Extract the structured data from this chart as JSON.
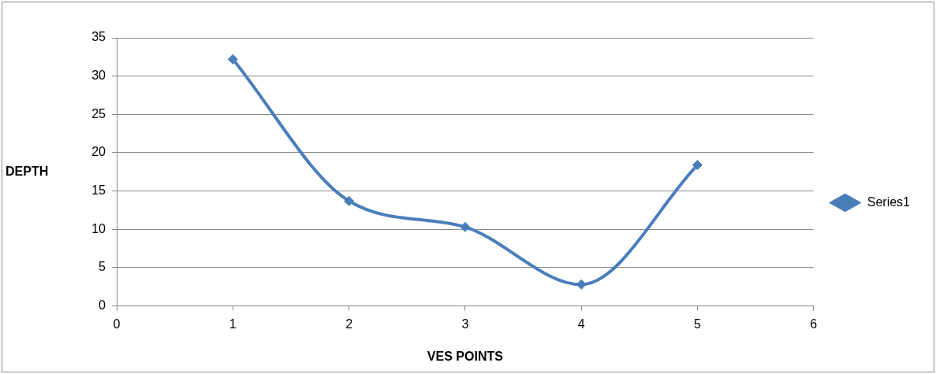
{
  "chart_data": {
    "type": "line",
    "xlabel": "VES POINTS",
    "ylabel": "DEPTH",
    "x": [
      1,
      2,
      3,
      4,
      5
    ],
    "series": [
      {
        "name": "Series1",
        "color": "#4a7ebb",
        "values": [
          32.2,
          13.7,
          10.3,
          2.8,
          18.4
        ]
      }
    ],
    "xlim": [
      0,
      6
    ],
    "xticks": [
      0,
      1,
      2,
      3,
      4,
      5,
      6
    ],
    "ylim": [
      0,
      35
    ],
    "yticks": [
      0,
      5,
      10,
      15,
      20,
      25,
      30,
      35
    ],
    "grid": "y",
    "legend": "right",
    "marker": "diamond",
    "line_style": "solid"
  }
}
